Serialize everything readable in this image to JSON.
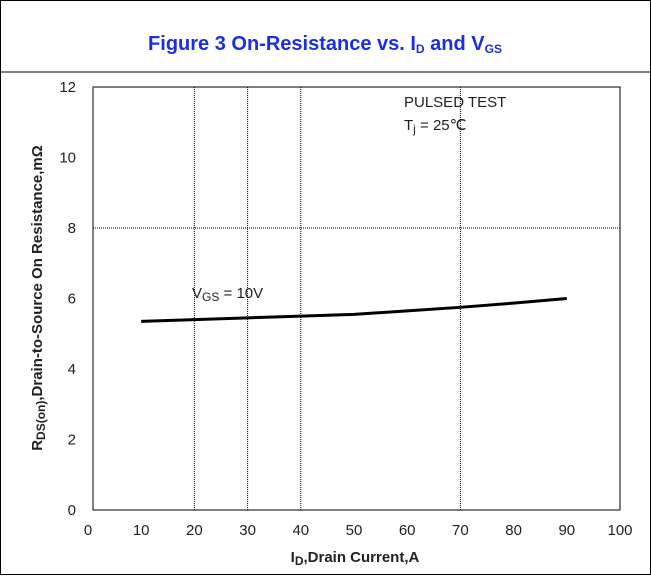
{
  "chart_data": {
    "type": "line",
    "title": [
      "Figure 3 On-Resistance vs. I",
      "D",
      " and V",
      "GS"
    ],
    "xlabel": [
      "I",
      "D",
      ",Drain Current,A"
    ],
    "ylabel": [
      "R",
      "DS(on)",
      ",Drain-to-Source On Resistance,mΩ"
    ],
    "annotations": {
      "vgs": [
        "V",
        "GS",
        " = 10V"
      ],
      "pulsed": "PULSED TEST",
      "tj": [
        "T",
        "j",
        " = 25℃"
      ]
    },
    "x": [
      10,
      20,
      30,
      40,
      50,
      60,
      70,
      80,
      90
    ],
    "values": [
      5.35,
      5.4,
      5.45,
      5.5,
      5.55,
      5.65,
      5.75,
      5.87,
      6.0
    ],
    "color": "#000000",
    "xlim": [
      0,
      100
    ],
    "xticks": [
      0,
      10,
      20,
      30,
      40,
      50,
      60,
      70,
      80,
      90,
      100
    ],
    "ylim": [
      0,
      12
    ],
    "yticks": [
      0,
      2,
      4,
      6,
      8,
      10,
      12
    ],
    "xgrid": [
      20,
      30,
      40,
      70
    ],
    "ygrid": [
      8
    ]
  }
}
